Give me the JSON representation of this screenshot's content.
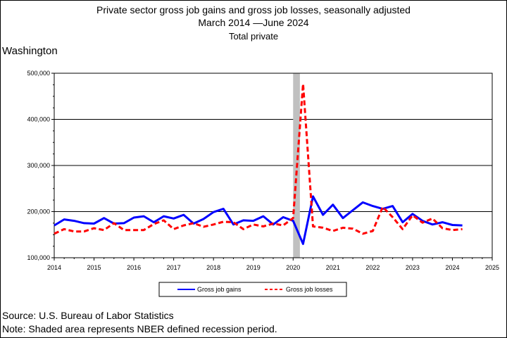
{
  "chart_data": {
    "type": "line",
    "title": "Private sector gross job gains and gross job losses, seasonally adjusted",
    "subtitle_start": "March 2014",
    "subtitle_end": "June 2024",
    "subtitle2": "Total private",
    "state": "Washington",
    "xlim": [
      2014,
      2025
    ],
    "ylim": [
      100000,
      500000
    ],
    "x_ticks": [
      "2014",
      "2015",
      "2016",
      "2017",
      "2018",
      "2019",
      "2020",
      "2021",
      "2022",
      "2023",
      "2024",
      "2025"
    ],
    "y_ticks": [
      "100,000",
      "200,000",
      "300,000",
      "400,000",
      "500,000"
    ],
    "recession": {
      "start": 2020.0,
      "end": 2020.17,
      "color": "#c0c0c0"
    },
    "legend_placement": "bottom-center",
    "series": [
      {
        "name": "Gross job gains",
        "color": "#0000ff",
        "style": "solid",
        "x": [
          2014.0,
          2014.25,
          2014.5,
          2014.75,
          2015.0,
          2015.25,
          2015.5,
          2015.75,
          2016.0,
          2016.25,
          2016.5,
          2016.75,
          2017.0,
          2017.25,
          2017.5,
          2017.75,
          2018.0,
          2018.25,
          2018.5,
          2018.75,
          2019.0,
          2019.25,
          2019.5,
          2019.75,
          2020.0,
          2020.25,
          2020.5,
          2020.75,
          2021.0,
          2021.25,
          2021.5,
          2021.75,
          2022.0,
          2022.25,
          2022.5,
          2022.75,
          2023.0,
          2023.25,
          2023.5,
          2023.75,
          2024.0,
          2024.25
        ],
        "values": [
          170000,
          183000,
          180000,
          175000,
          174000,
          186000,
          174000,
          175000,
          187000,
          190000,
          177000,
          190000,
          185000,
          193000,
          174000,
          184000,
          199000,
          206000,
          172000,
          181000,
          180000,
          190000,
          172000,
          188000,
          180000,
          130000,
          233000,
          193000,
          215000,
          186000,
          203000,
          220000,
          212000,
          206000,
          212000,
          177000,
          195000,
          180000,
          172000,
          177000,
          171000,
          170000
        ]
      },
      {
        "name": "Gross job losses",
        "color": "#ff0000",
        "style": "dashed",
        "x": [
          2014.0,
          2014.25,
          2014.5,
          2014.75,
          2015.0,
          2015.25,
          2015.5,
          2015.75,
          2016.0,
          2016.25,
          2016.5,
          2016.75,
          2017.0,
          2017.25,
          2017.5,
          2017.75,
          2018.0,
          2018.25,
          2018.5,
          2018.75,
          2019.0,
          2019.25,
          2019.5,
          2019.75,
          2020.0,
          2020.25,
          2020.5,
          2020.75,
          2021.0,
          2021.25,
          2021.5,
          2021.75,
          2022.0,
          2022.25,
          2022.5,
          2022.75,
          2023.0,
          2023.25,
          2023.5,
          2023.75,
          2024.0,
          2024.25
        ],
        "values": [
          152000,
          162000,
          157000,
          157000,
          164000,
          160000,
          175000,
          160000,
          160000,
          160000,
          173000,
          181000,
          162000,
          170000,
          175000,
          167000,
          172000,
          178000,
          177000,
          162000,
          172000,
          168000,
          174000,
          170000,
          186000,
          477000,
          168000,
          165000,
          158000,
          165000,
          163000,
          152000,
          158000,
          210000,
          188000,
          162000,
          192000,
          176000,
          185000,
          164000,
          160000,
          162000
        ]
      }
    ]
  },
  "footer": {
    "source": "Source: U.S. Bureau of Labor Statistics",
    "note": "Note: Shaded area represents NBER defined recession period."
  }
}
